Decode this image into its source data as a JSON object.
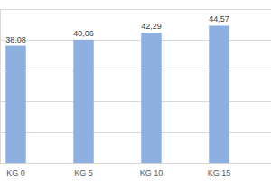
{
  "chart_data": {
    "type": "bar",
    "categories": [
      "KG 0",
      "KG 5",
      "KG 10",
      "KG 15"
    ],
    "values": [
      38.08,
      40.06,
      42.29,
      44.57
    ],
    "value_labels": [
      "38,08",
      "40,06",
      "42,29",
      "44,57"
    ],
    "color": "#8eb0e0",
    "ylim": [
      0,
      50
    ],
    "yticks": [
      0,
      10,
      20,
      30,
      40,
      50
    ],
    "grid": true,
    "data_labels": true,
    "tick_labels": "x"
  }
}
